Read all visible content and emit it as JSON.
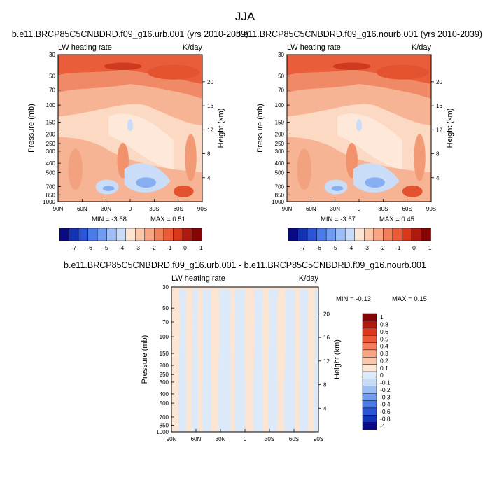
{
  "figure": {
    "season": "JJA",
    "diff_title": "b.e11.BRCP85C5CNBDRD.f09_g16.urb.001 - b.e11.BRCP85C5CNBDRD.f09_g16.nourb.001"
  },
  "chart_data": [
    {
      "type": "heatmap",
      "title": "b.e11.BRCP85C5CNBDRD.f09_g16.urb.001 (yrs 2010-2039)",
      "left_label": "LW heating rate",
      "right_label": "K/day",
      "ylabel": "Pressure (mb)",
      "ylabel_right": "Height (km)",
      "x_ticks": [
        "90N",
        "60N",
        "30N",
        "0",
        "30S",
        "60S",
        "90S"
      ],
      "p_ticks": [
        "30",
        "50",
        "70",
        "100",
        "150",
        "200",
        "250",
        "300",
        "400",
        "500",
        "700",
        "850",
        "1000"
      ],
      "p_values": [
        30,
        50,
        70,
        100,
        150,
        200,
        250,
        300,
        400,
        500,
        700,
        850,
        1000
      ],
      "z_ticks": [
        "20",
        "16",
        "12",
        "8",
        "4"
      ],
      "z_values": [
        20,
        16,
        12,
        8,
        4
      ],
      "ylim": [
        1000,
        30
      ],
      "min_text": "MIN = -3.68",
      "max_text": "MAX = 0.51"
    },
    {
      "type": "heatmap",
      "title": "b.e11.BRCP85C5CNBDRD.f09_g16.nourb.001 (yrs 2010-2039)",
      "left_label": "LW heating rate",
      "right_label": "K/day",
      "ylabel": "Pressure (mb)",
      "ylabel_right": "Height (km)",
      "x_ticks": [
        "90N",
        "60N",
        "30N",
        "0",
        "30S",
        "60S",
        "90S"
      ],
      "p_ticks": [
        "30",
        "50",
        "70",
        "100",
        "150",
        "200",
        "250",
        "300",
        "400",
        "500",
        "700",
        "850",
        "1000"
      ],
      "p_values": [
        30,
        50,
        70,
        100,
        150,
        200,
        250,
        300,
        400,
        500,
        700,
        850,
        1000
      ],
      "z_ticks": [
        "20",
        "16",
        "12",
        "8",
        "4"
      ],
      "z_values": [
        20,
        16,
        12,
        8,
        4
      ],
      "ylim": [
        1000,
        30
      ],
      "min_text": "MIN = -3.67",
      "max_text": "MAX = 0.45"
    },
    {
      "type": "heatmap",
      "left_label": "LW heating rate",
      "right_label": "K/day",
      "ylabel": "Pressure (mb)",
      "ylabel_right": "Height (km)",
      "x_ticks": [
        "90N",
        "60N",
        "30N",
        "0",
        "30S",
        "60S",
        "90S"
      ],
      "p_ticks": [
        "30",
        "50",
        "70",
        "100",
        "150",
        "200",
        "250",
        "300",
        "400",
        "500",
        "700",
        "850",
        "1000"
      ],
      "p_values": [
        30,
        50,
        70,
        100,
        150,
        200,
        250,
        300,
        400,
        500,
        700,
        850,
        1000
      ],
      "z_ticks": [
        "20",
        "16",
        "12",
        "8",
        "4"
      ],
      "z_values": [
        20,
        16,
        12,
        8,
        4
      ],
      "ylim": [
        1000,
        30
      ],
      "min_text": "MIN = -0.13",
      "max_text": "MAX = 0.15"
    }
  ],
  "colorbar_main": {
    "labels": [
      "-7",
      "-6",
      "-5",
      "-4",
      "-3",
      "-2",
      "-1",
      "0",
      "1"
    ],
    "colors": [
      "#0a0a85",
      "#1432b4",
      "#2a55d6",
      "#4a7ae8",
      "#6f9cf2",
      "#9dbdf5",
      "#c8dcf8",
      "#fde5d4",
      "#fbc7ab",
      "#f7a582",
      "#f27f5b",
      "#ea5a36",
      "#d8391d",
      "#b01a0e",
      "#850505"
    ]
  },
  "colorbar_diff": {
    "labels": [
      "1",
      "0.8",
      "0.6",
      "0.5",
      "0.4",
      "0.3",
      "0.2",
      "0.1",
      "0",
      "-0.1",
      "-0.2",
      "-0.3",
      "-0.4",
      "-0.6",
      "-0.8",
      "-1"
    ],
    "colors": [
      "#850505",
      "#b01a0e",
      "#d8391d",
      "#ea5a36",
      "#f27f5b",
      "#f7a582",
      "#fbc7ab",
      "#fde5d4",
      "#dbe9f8",
      "#c8dcf8",
      "#9dbdf5",
      "#6f9cf2",
      "#4a7ae8",
      "#2a55d6",
      "#1432b4",
      "#0a0a85"
    ]
  }
}
